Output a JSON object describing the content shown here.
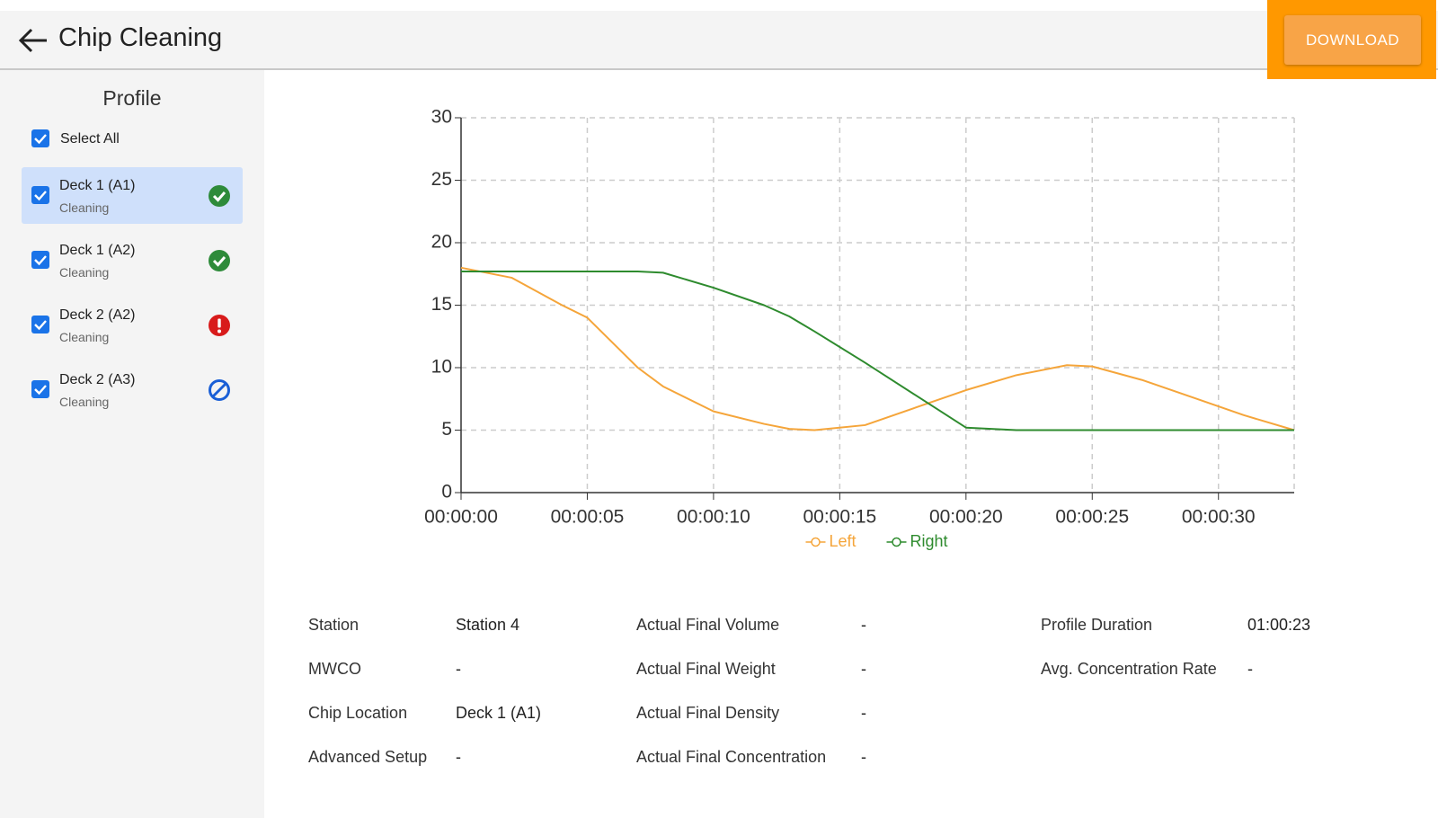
{
  "header": {
    "title": "Chip Cleaning",
    "button": "DOWNLOAD"
  },
  "sidebar": {
    "title": "Profile",
    "select_all": "Select All",
    "items": [
      {
        "label": "Deck 1 (A1)",
        "sublabel": "Cleaning"
      },
      {
        "label": "Deck 1 (A2)",
        "sublabel": "Cleaning"
      },
      {
        "label": "Deck 2 (A2)",
        "sublabel": "Cleaning"
      },
      {
        "label": "Deck 2 (A3)",
        "sublabel": "Cleaning"
      }
    ]
  },
  "chart_data": {
    "type": "line",
    "x": [
      0,
      2,
      4,
      5,
      6,
      7,
      8,
      10,
      12,
      13,
      14,
      16,
      18,
      20,
      22,
      24,
      25,
      27,
      29,
      31,
      33
    ],
    "series": [
      {
        "name": "Left",
        "color": "#f5a53a",
        "values": [
          18,
          17.2,
          15,
          14,
          12,
          10,
          8.5,
          6.5,
          5.5,
          5.1,
          5,
          5.4,
          6.8,
          8.2,
          9.4,
          10.2,
          10.1,
          9,
          7.6,
          6.2,
          5
        ]
      },
      {
        "name": "Right",
        "color": "#2e8b2e",
        "values": [
          17.7,
          17.7,
          17.7,
          17.7,
          17.7,
          17.7,
          17.6,
          16.4,
          15,
          14.1,
          12.9,
          10.4,
          7.8,
          5.2,
          5,
          5,
          5,
          5,
          5,
          5,
          5
        ]
      }
    ],
    "xlim": [
      0,
      33
    ],
    "xticks": [
      {
        "value": 0,
        "label": "00:00:00"
      },
      {
        "value": 5,
        "label": "00:00:05"
      },
      {
        "value": 10,
        "label": "00:00:10"
      },
      {
        "value": 15,
        "label": "00:00:15"
      },
      {
        "value": 20,
        "label": "00:00:20"
      },
      {
        "value": 25,
        "label": "00:00:25"
      },
      {
        "value": 30,
        "label": "00:00:30"
      }
    ],
    "ylim": [
      0,
      30
    ],
    "yticks": [
      0,
      5,
      10,
      15,
      20,
      25,
      30
    ],
    "grid": true,
    "legend": "bottom"
  },
  "details": {
    "columns": [
      [
        {
          "label": "Station",
          "value": "Station 4"
        },
        {
          "label": "MWCO",
          "value": "-"
        },
        {
          "label": "Chip Location",
          "value": "Deck 1 (A1)"
        },
        {
          "label": "Advanced Setup",
          "value": "-"
        }
      ],
      [
        {
          "label": "Actual Final Volume",
          "value": "-"
        },
        {
          "label": "Actual Final Weight",
          "value": "-"
        },
        {
          "label": "Actual Final Density",
          "value": "-"
        },
        {
          "label": "Actual Final Concentration",
          "value": "-"
        }
      ],
      [
        {
          "label": "Profile Duration",
          "value": "01:00:23"
        },
        {
          "label": "Avg. Concentration Rate",
          "value": "-"
        }
      ]
    ]
  }
}
